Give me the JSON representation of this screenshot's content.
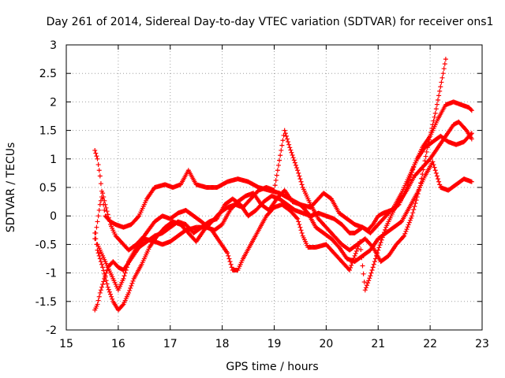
{
  "chart_data": {
    "type": "scatter",
    "title": "Day 261 of 2014, Sidereal Day-to-day VTEC variation (SDTVAR) for receiver ons1",
    "xlabel": "GPS time / hours",
    "ylabel": "SDTVAR / TECUs",
    "xlim": [
      15,
      23
    ],
    "ylim": [
      -2,
      3
    ],
    "x_ticks": [
      15,
      16,
      17,
      18,
      19,
      20,
      21,
      22,
      23
    ],
    "y_ticks": [
      -2,
      -1.5,
      -1,
      -0.5,
      0,
      0.5,
      1,
      1.5,
      2,
      2.5,
      3
    ],
    "x_tick_labels": [
      "15",
      "16",
      "17",
      "18",
      "19",
      "20",
      "21",
      "22",
      "23"
    ],
    "y_tick_labels": [
      "-2",
      "-1.5",
      "-1",
      "-0.5",
      "0",
      "0.5",
      "1",
      "1.5",
      "2",
      "2.5",
      "3"
    ],
    "grid": true,
    "marker": "+",
    "color": "#ff0000",
    "step_hours": 0.0167,
    "series": [
      {
        "name": "trace-1",
        "points": [
          [
            15.55,
            1.15
          ],
          [
            15.6,
            1.0
          ],
          [
            15.65,
            0.7
          ],
          [
            15.7,
            0.3
          ],
          [
            15.75,
            0.0
          ],
          [
            15.85,
            -0.1
          ],
          [
            15.95,
            -0.15
          ],
          [
            16.1,
            -0.2
          ],
          [
            16.25,
            -0.15
          ],
          [
            16.4,
            0.0
          ],
          [
            16.55,
            0.3
          ],
          [
            16.7,
            0.5
          ],
          [
            16.9,
            0.55
          ],
          [
            17.05,
            0.5
          ],
          [
            17.2,
            0.55
          ],
          [
            17.35,
            0.8
          ],
          [
            17.5,
            0.55
          ],
          [
            17.7,
            0.5
          ],
          [
            17.9,
            0.5
          ],
          [
            18.1,
            0.6
          ],
          [
            18.3,
            0.65
          ],
          [
            18.5,
            0.6
          ],
          [
            18.7,
            0.5
          ],
          [
            18.9,
            0.45
          ],
          [
            19.1,
            0.4
          ],
          [
            19.3,
            0.3
          ],
          [
            19.5,
            0.2
          ],
          [
            19.7,
            0.15
          ],
          [
            19.85,
            0.3
          ],
          [
            19.95,
            0.4
          ],
          [
            20.1,
            0.3
          ],
          [
            20.25,
            0.05
          ],
          [
            20.4,
            -0.05
          ],
          [
            20.55,
            -0.15
          ],
          [
            20.7,
            -0.2
          ],
          [
            20.8,
            -0.25
          ],
          [
            20.9,
            -0.15
          ],
          [
            21.0,
            0.0
          ],
          [
            21.1,
            0.05
          ],
          [
            21.25,
            0.1
          ],
          [
            21.4,
            0.2
          ],
          [
            21.55,
            0.5
          ],
          [
            21.7,
            0.9
          ],
          [
            21.85,
            1.2
          ],
          [
            22.0,
            1.4
          ],
          [
            22.15,
            1.7
          ],
          [
            22.3,
            1.95
          ],
          [
            22.45,
            2.0
          ],
          [
            22.6,
            1.95
          ],
          [
            22.75,
            1.9
          ],
          [
            22.8,
            1.85
          ]
        ]
      },
      {
        "name": "trace-2",
        "points": [
          [
            15.55,
            -0.4
          ],
          [
            15.6,
            -0.1
          ],
          [
            15.65,
            0.2
          ],
          [
            15.7,
            0.4
          ],
          [
            15.75,
            0.2
          ],
          [
            15.85,
            -0.15
          ],
          [
            15.95,
            -0.35
          ],
          [
            16.1,
            -0.5
          ],
          [
            16.2,
            -0.6
          ],
          [
            16.35,
            -0.5
          ],
          [
            16.5,
            -0.35
          ],
          [
            16.7,
            -0.1
          ],
          [
            16.85,
            0.0
          ],
          [
            17.0,
            -0.05
          ],
          [
            17.15,
            0.05
          ],
          [
            17.3,
            0.1
          ],
          [
            17.45,
            0.0
          ],
          [
            17.6,
            -0.1
          ],
          [
            17.8,
            -0.25
          ],
          [
            17.95,
            -0.45
          ],
          [
            18.1,
            -0.65
          ],
          [
            18.2,
            -0.95
          ],
          [
            18.3,
            -0.95
          ],
          [
            18.4,
            -0.75
          ],
          [
            18.55,
            -0.5
          ],
          [
            18.7,
            -0.25
          ],
          [
            18.85,
            0.0
          ],
          [
            19.0,
            0.15
          ],
          [
            19.15,
            0.2
          ],
          [
            19.3,
            0.1
          ],
          [
            19.45,
            -0.05
          ],
          [
            19.55,
            -0.35
          ],
          [
            19.65,
            -0.55
          ],
          [
            19.8,
            -0.55
          ],
          [
            20.0,
            -0.5
          ],
          [
            20.15,
            -0.65
          ],
          [
            20.3,
            -0.8
          ],
          [
            20.45,
            -0.95
          ],
          [
            20.55,
            -0.7
          ],
          [
            20.65,
            -0.45
          ],
          [
            20.75,
            -1.3
          ],
          [
            20.85,
            -1.05
          ],
          [
            21.0,
            -0.6
          ],
          [
            21.15,
            -0.2
          ],
          [
            21.3,
            0.1
          ],
          [
            21.45,
            0.3
          ],
          [
            21.55,
            0.45
          ],
          [
            21.7,
            0.7
          ],
          [
            21.85,
            0.85
          ],
          [
            22.0,
            1.0
          ],
          [
            22.15,
            1.2
          ],
          [
            22.3,
            1.4
          ],
          [
            22.45,
            1.6
          ],
          [
            22.55,
            1.65
          ],
          [
            22.7,
            1.5
          ],
          [
            22.8,
            1.35
          ]
        ]
      },
      {
        "name": "trace-3",
        "points": [
          [
            15.55,
            -1.65
          ],
          [
            15.6,
            -1.55
          ],
          [
            15.65,
            -1.35
          ],
          [
            15.7,
            -1.2
          ],
          [
            15.8,
            -0.9
          ],
          [
            15.9,
            -0.8
          ],
          [
            16.0,
            -0.9
          ],
          [
            16.1,
            -0.95
          ],
          [
            16.25,
            -0.75
          ],
          [
            16.4,
            -0.55
          ],
          [
            16.55,
            -0.45
          ],
          [
            16.7,
            -0.35
          ],
          [
            16.85,
            -0.3
          ],
          [
            17.0,
            -0.2
          ],
          [
            17.15,
            -0.1
          ],
          [
            17.3,
            -0.15
          ],
          [
            17.45,
            -0.3
          ],
          [
            17.6,
            -0.2
          ],
          [
            17.75,
            -0.1
          ],
          [
            17.9,
            -0.05
          ],
          [
            18.05,
            0.2
          ],
          [
            18.2,
            0.3
          ],
          [
            18.35,
            0.2
          ],
          [
            18.5,
            0.0
          ],
          [
            18.65,
            0.1
          ],
          [
            18.8,
            0.25
          ],
          [
            18.95,
            0.35
          ],
          [
            19.1,
            0.3
          ],
          [
            19.25,
            0.2
          ],
          [
            19.4,
            0.1
          ],
          [
            19.55,
            0.05
          ],
          [
            19.7,
            0.0
          ],
          [
            19.85,
            0.05
          ],
          [
            20.0,
            0.0
          ],
          [
            20.15,
            -0.05
          ],
          [
            20.3,
            -0.15
          ],
          [
            20.45,
            -0.3
          ],
          [
            20.55,
            -0.3
          ],
          [
            20.7,
            -0.2
          ],
          [
            20.85,
            -0.3
          ],
          [
            21.0,
            -0.15
          ],
          [
            21.15,
            0.0
          ],
          [
            21.3,
            0.15
          ],
          [
            21.45,
            0.4
          ],
          [
            21.6,
            0.7
          ],
          [
            21.75,
            1.0
          ],
          [
            21.9,
            1.2
          ],
          [
            22.05,
            1.3
          ],
          [
            22.2,
            1.4
          ],
          [
            22.35,
            1.3
          ],
          [
            22.5,
            1.25
          ],
          [
            22.65,
            1.3
          ],
          [
            22.8,
            1.45
          ]
        ]
      },
      {
        "name": "trace-4",
        "points": [
          [
            15.55,
            -0.3
          ],
          [
            15.6,
            -0.6
          ],
          [
            15.7,
            -0.9
          ],
          [
            15.8,
            -1.25
          ],
          [
            15.9,
            -1.5
          ],
          [
            16.0,
            -1.65
          ],
          [
            16.1,
            -1.55
          ],
          [
            16.2,
            -1.35
          ],
          [
            16.3,
            -1.1
          ],
          [
            16.45,
            -0.85
          ],
          [
            16.6,
            -0.55
          ],
          [
            16.75,
            -0.35
          ],
          [
            16.9,
            -0.2
          ],
          [
            17.05,
            -0.1
          ],
          [
            17.2,
            -0.15
          ],
          [
            17.35,
            -0.3
          ],
          [
            17.5,
            -0.45
          ],
          [
            17.65,
            -0.25
          ],
          [
            17.8,
            -0.1
          ],
          [
            17.95,
            0.05
          ],
          [
            18.1,
            0.15
          ],
          [
            18.25,
            0.2
          ],
          [
            18.4,
            0.15
          ],
          [
            18.55,
            0.3
          ],
          [
            18.7,
            0.45
          ],
          [
            18.85,
            0.5
          ],
          [
            19.0,
            0.45
          ],
          [
            19.2,
            1.5
          ],
          [
            19.3,
            1.2
          ],
          [
            19.45,
            0.8
          ],
          [
            19.55,
            0.5
          ],
          [
            19.7,
            0.2
          ],
          [
            19.85,
            -0.05
          ],
          [
            20.0,
            -0.2
          ],
          [
            20.15,
            -0.35
          ],
          [
            20.3,
            -0.5
          ],
          [
            20.45,
            -0.6
          ],
          [
            20.6,
            -0.5
          ],
          [
            20.75,
            -0.4
          ],
          [
            20.9,
            -0.55
          ],
          [
            21.05,
            -0.8
          ],
          [
            21.2,
            -0.7
          ],
          [
            21.35,
            -0.5
          ],
          [
            21.5,
            -0.35
          ],
          [
            21.65,
            0.0
          ],
          [
            21.8,
            0.5
          ],
          [
            21.95,
            1.2
          ],
          [
            22.1,
            1.8
          ],
          [
            22.25,
            2.5
          ],
          [
            22.3,
            2.75
          ]
        ]
      },
      {
        "name": "trace-5",
        "points": [
          [
            15.6,
            -0.5
          ],
          [
            15.7,
            -0.7
          ],
          [
            15.8,
            -0.9
          ],
          [
            15.9,
            -1.1
          ],
          [
            16.0,
            -1.3
          ],
          [
            16.1,
            -1.1
          ],
          [
            16.2,
            -0.8
          ],
          [
            16.35,
            -0.55
          ],
          [
            16.5,
            -0.4
          ],
          [
            16.7,
            -0.45
          ],
          [
            16.85,
            -0.5
          ],
          [
            17.0,
            -0.45
          ],
          [
            17.15,
            -0.35
          ],
          [
            17.3,
            -0.25
          ],
          [
            17.5,
            -0.2
          ],
          [
            17.7,
            -0.2
          ],
          [
            17.85,
            -0.25
          ],
          [
            18.0,
            -0.15
          ],
          [
            18.15,
            0.1
          ],
          [
            18.3,
            0.25
          ],
          [
            18.45,
            0.35
          ],
          [
            18.6,
            0.4
          ],
          [
            18.75,
            0.2
          ],
          [
            18.9,
            0.1
          ],
          [
            19.05,
            0.3
          ],
          [
            19.2,
            0.45
          ],
          [
            19.35,
            0.25
          ],
          [
            19.5,
            0.2
          ],
          [
            19.65,
            0.05
          ],
          [
            19.8,
            -0.2
          ],
          [
            19.95,
            -0.3
          ],
          [
            20.1,
            -0.4
          ],
          [
            20.25,
            -0.55
          ],
          [
            20.4,
            -0.75
          ],
          [
            20.55,
            -0.8
          ],
          [
            20.7,
            -0.7
          ],
          [
            20.85,
            -0.6
          ],
          [
            21.0,
            -0.4
          ],
          [
            21.15,
            -0.3
          ],
          [
            21.3,
            -0.2
          ],
          [
            21.45,
            -0.1
          ],
          [
            21.6,
            0.15
          ],
          [
            21.75,
            0.4
          ],
          [
            21.9,
            0.7
          ],
          [
            22.05,
            0.95
          ],
          [
            22.2,
            0.5
          ],
          [
            22.35,
            0.45
          ],
          [
            22.5,
            0.55
          ],
          [
            22.65,
            0.65
          ],
          [
            22.8,
            0.6
          ]
        ]
      }
    ]
  }
}
